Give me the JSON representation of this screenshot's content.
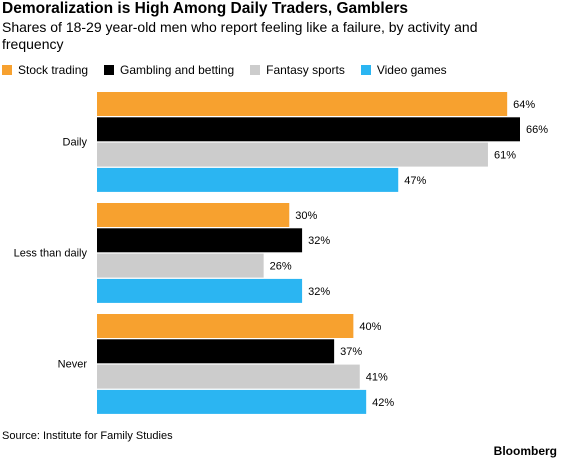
{
  "chart_data": {
    "type": "bar",
    "orientation": "horizontal",
    "title": "Demoralization is High Among Daily Traders, Gamblers",
    "subtitle": "Shares of 18-29 year-old men who report feeling like a failure, by activity and frequency",
    "categories": [
      "Daily",
      "Less than daily",
      "Never"
    ],
    "series": [
      {
        "name": "Stock trading",
        "color": "#f7a12f",
        "values": [
          64,
          30,
          40
        ],
        "value_labels": [
          "64%",
          "30%",
          "40%"
        ]
      },
      {
        "name": "Gambling and betting",
        "color": "#000000",
        "values": [
          66,
          32,
          37
        ],
        "value_labels": [
          "66%",
          "32%",
          "37%"
        ]
      },
      {
        "name": "Fantasy sports",
        "color": "#cccccc",
        "values": [
          61,
          26,
          41
        ],
        "value_labels": [
          "61%",
          "26%",
          "41%"
        ]
      },
      {
        "name": "Video games",
        "color": "#2bb5f2",
        "values": [
          47,
          32,
          42
        ],
        "value_labels": [
          "47%",
          "32%",
          "42%"
        ]
      }
    ],
    "source": "Source: Institute for Family Studies",
    "brand": "Bloomberg"
  }
}
